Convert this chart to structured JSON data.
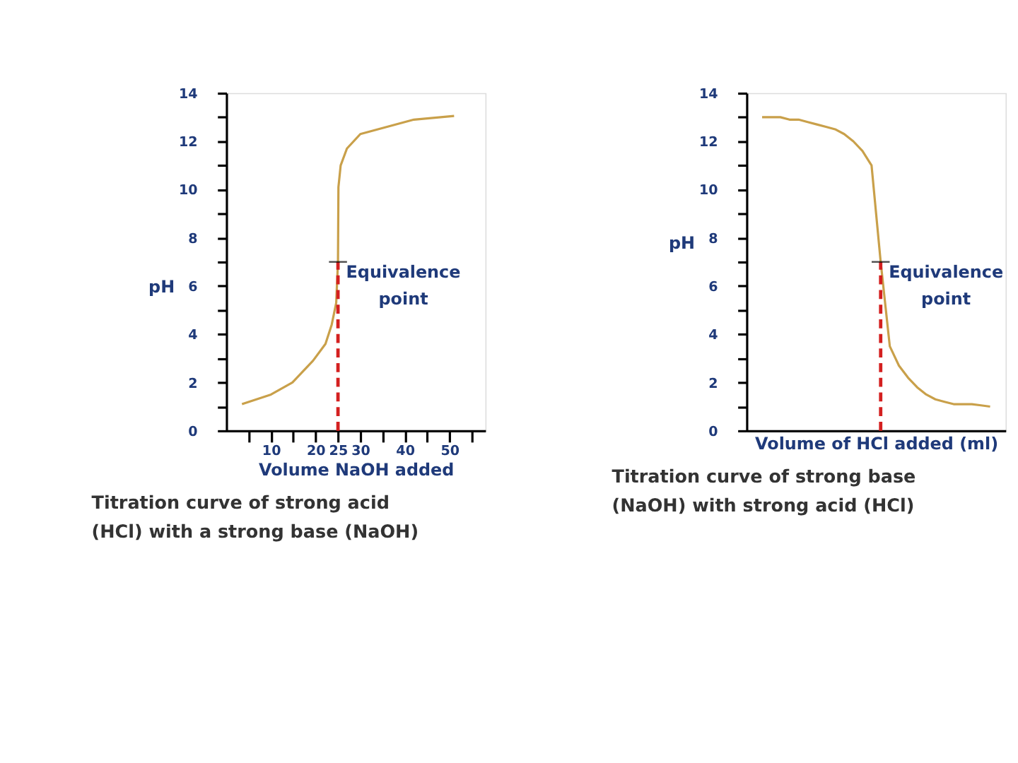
{
  "chart_data": [
    {
      "type": "line",
      "title": "Titration curve of strong acid (HCl) with a strong base (NaOH)",
      "xlabel": "Volume NaOH added",
      "ylabel": "pH",
      "x": [
        3.5,
        10,
        14.8,
        19.4,
        22.2,
        23.6,
        24.6,
        25,
        25.1,
        25.6,
        27,
        30,
        36,
        42,
        51
      ],
      "series": [
        {
          "color": "#c9a04a",
          "values": [
            1.1,
            1.5,
            2.0,
            2.9,
            3.6,
            4.4,
            5.3,
            7.0,
            10.1,
            11.0,
            11.7,
            12.3,
            12.6,
            12.9,
            13.05
          ]
        }
      ],
      "xlim": [
        0,
        58
      ],
      "xticks": [
        {
          "value": 5,
          "label": null
        },
        10,
        {
          "value": 15,
          "label": null
        },
        20,
        25,
        30,
        {
          "value": 35,
          "label": null
        },
        40,
        {
          "value": 45,
          "label": null
        },
        50,
        {
          "value": 55,
          "label": null
        }
      ],
      "ylim": [
        0,
        14
      ],
      "yticks": [
        0,
        {
          "value": 1,
          "label": null
        },
        2,
        {
          "value": 3,
          "label": null
        },
        4,
        {
          "value": 5,
          "label": null
        },
        6,
        {
          "value": 7,
          "label": null
        },
        8,
        {
          "value": 9,
          "label": null
        },
        10,
        {
          "value": 11,
          "label": null
        },
        12,
        {
          "value": 13,
          "label": null
        },
        14
      ],
      "annotations": [
        {
          "text": "Equivalence point",
          "x": 25,
          "y": 7
        }
      ]
    },
    {
      "type": "line",
      "title": "Titration curve of strong base (NaOH) with strong acid (HCl)",
      "xlabel": "Volume of HCl added (ml)",
      "ylabel": "pH",
      "categories": [
        null,
        null,
        null,
        null,
        null,
        null,
        null,
        null,
        null,
        null,
        null,
        null,
        null,
        null,
        null,
        null,
        null,
        null,
        null,
        null,
        null,
        null,
        null,
        null,
        null,
        null
      ],
      "series": [
        {
          "color": "#c9a04a",
          "values": [
            13.0,
            13.0,
            13.0,
            12.9,
            12.9,
            12.8,
            12.7,
            12.6,
            12.5,
            12.3,
            12.0,
            11.6,
            11.0,
            7.0,
            3.5,
            2.7,
            2.2,
            1.8,
            1.5,
            1.3,
            1.2,
            1.1,
            1.1,
            1.1,
            1.05,
            1.0
          ]
        }
      ],
      "ylim": [
        0,
        14
      ],
      "yticks": [
        0,
        {
          "value": 1,
          "label": null
        },
        2,
        {
          "value": 3,
          "label": null
        },
        4,
        {
          "value": 5,
          "label": null
        },
        6,
        {
          "value": 7,
          "label": null
        },
        8,
        {
          "value": 9,
          "label": null
        },
        10,
        {
          "value": 11,
          "label": null
        },
        12,
        {
          "value": 13,
          "label": null
        },
        14
      ],
      "tick_labels": "y",
      "annotations": [
        "Equivalence point"
      ]
    }
  ]
}
